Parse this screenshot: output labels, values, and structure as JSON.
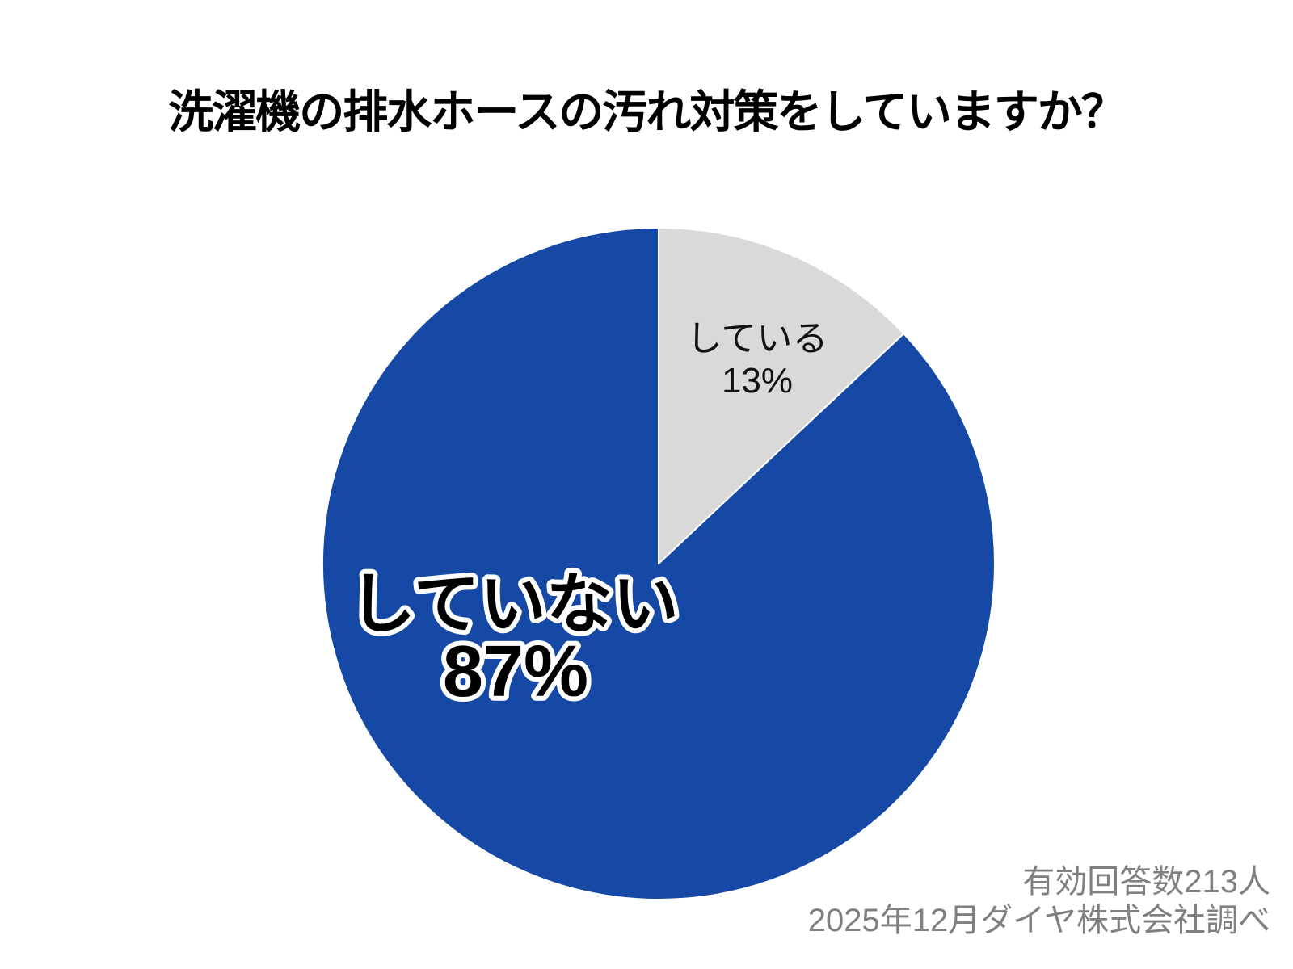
{
  "chart_data": {
    "type": "pie",
    "title": "洗濯機の排水ホースの汚れ対策をしていますか？",
    "unit": "%",
    "start_angle_deg": 0,
    "direction": "clockwise",
    "legend_position": "none",
    "slices": [
      {
        "label": "している",
        "value": 13,
        "display": "13%",
        "color": "#d9d9d9",
        "label_style": "plain-black"
      },
      {
        "label": "していない",
        "value": 87,
        "display": "87%",
        "color": "#1549a5",
        "label_style": "bold-black-white-outline"
      }
    ],
    "separator_color": "#ffffff",
    "footnote": {
      "lines": [
        "有効回答数213人",
        "2025年12月ダイヤ株式会社調べ"
      ],
      "color": "#808080"
    }
  }
}
